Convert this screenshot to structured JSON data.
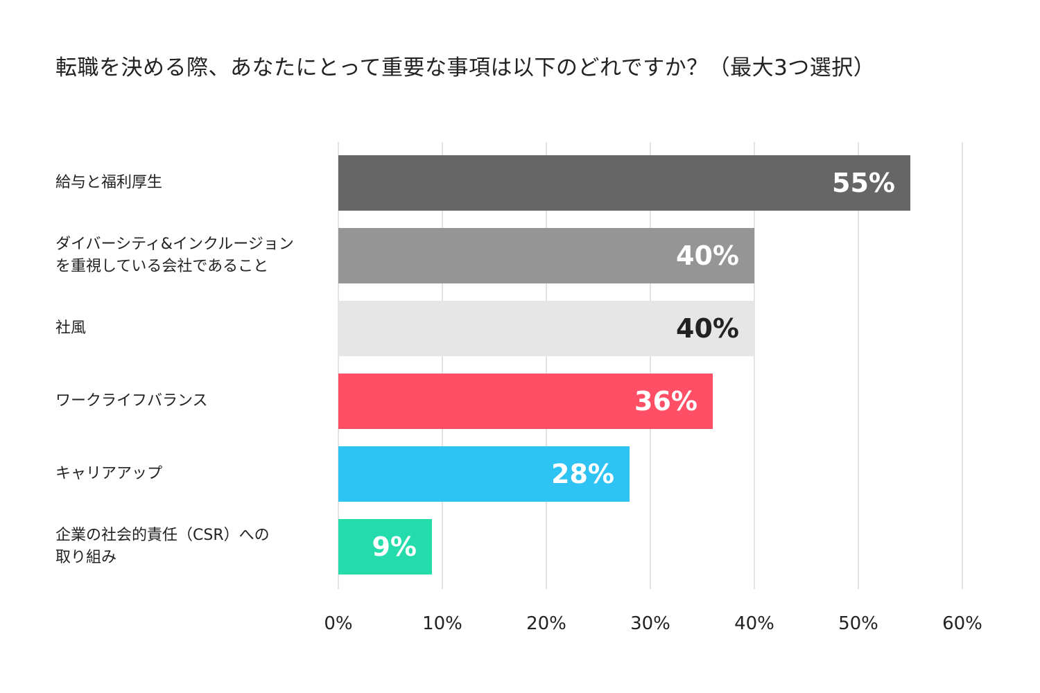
{
  "chart_data": {
    "type": "bar",
    "orientation": "horizontal",
    "title": "転職を決める際、あなたにとって重要な事項は以下のどれですか？（最大3つ選択）",
    "categories": [
      "給与と福利厚生",
      "ダイバーシティ&インクルージョン\nを重視している会社であること",
      "社風",
      "ワークライフバランス",
      "キャリアアップ",
      "企業の社会的責任（CSR）への\n取り組み"
    ],
    "values": [
      55,
      40,
      40,
      36,
      28,
      9
    ],
    "value_labels": [
      "55%",
      "40%",
      "40%",
      "36%",
      "28%",
      "9%"
    ],
    "bar_colors": [
      "#666666",
      "#959595",
      "#e6e6e6",
      "#ff4f66",
      "#2ec3f2",
      "#24dbab"
    ],
    "label_colors": [
      "#ffffff",
      "#ffffff",
      "#222222",
      "#ffffff",
      "#ffffff",
      "#ffffff"
    ],
    "xlim": [
      0,
      60
    ],
    "x_ticks": [
      "0%",
      "10%",
      "20%",
      "30%",
      "40%",
      "50%",
      "60%"
    ],
    "x_tick_values": [
      0,
      10,
      20,
      30,
      40,
      50,
      60
    ],
    "grid": true,
    "grid_color": "#d9d9d9",
    "xlabel": "",
    "ylabel": ""
  }
}
